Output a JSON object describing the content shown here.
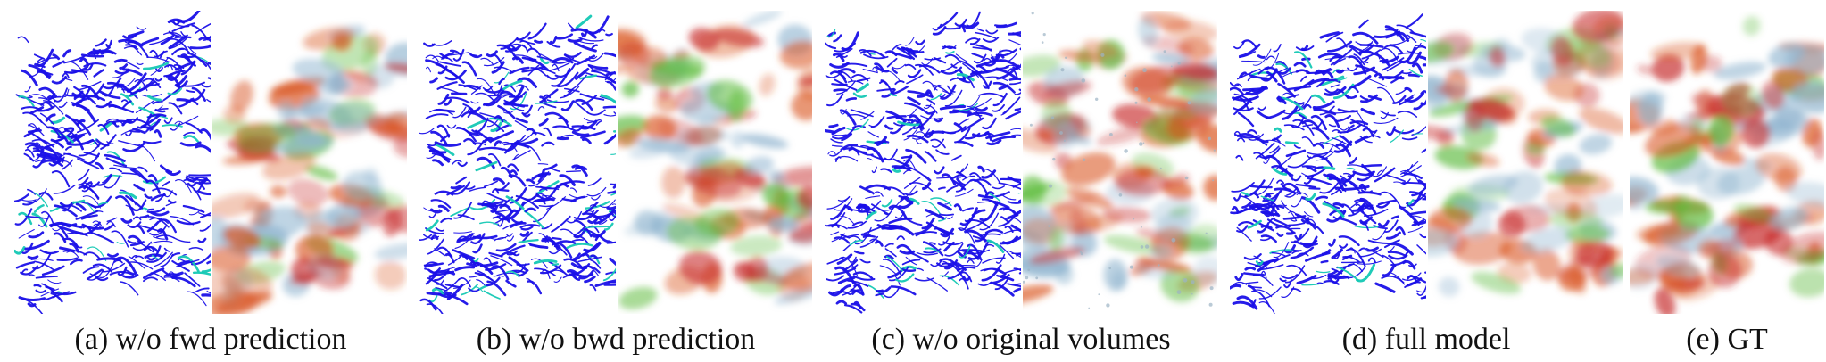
{
  "figure": {
    "panels": [
      {
        "caption": "(a) w/o fwd prediction",
        "has_flow_view": true,
        "has_volume_view": true,
        "artifacts": false
      },
      {
        "caption": "(b) w/o bwd prediction",
        "has_flow_view": true,
        "has_volume_view": true,
        "artifacts": false
      },
      {
        "caption": "(c) w/o original volumes",
        "has_flow_view": true,
        "has_volume_view": true,
        "artifacts": true
      },
      {
        "caption": "(d) full model",
        "has_flow_view": true,
        "has_volume_view": true,
        "artifacts": false
      },
      {
        "caption": "(e) GT",
        "has_flow_view": false,
        "has_volume_view": true,
        "artifacts": false
      }
    ],
    "colors": {
      "flow_lines": "#1a10e8",
      "flow_accent": "#14c8b4",
      "volume_orange": "#d9531e",
      "volume_green": "#5dbb3c",
      "volume_blue": "#8fb4cf",
      "volume_red": "#c62828"
    }
  }
}
